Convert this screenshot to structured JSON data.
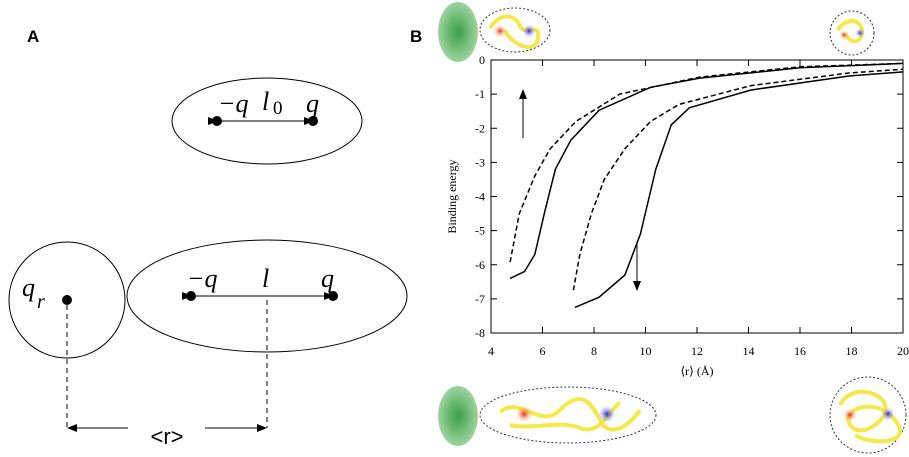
{
  "panel_a": {
    "label": "A",
    "top": {
      "left_charge": "−q",
      "length": "l",
      "length_subscript": "0",
      "right_charge": "q"
    },
    "bottom": {
      "probe_charge": "q",
      "probe_subscript": "r",
      "left_charge": "−q",
      "length": "l",
      "right_charge": "q",
      "distance": "<r>"
    }
  },
  "chart_data": {
    "type": "line",
    "panel_label": "B",
    "xlabel": "⟨r⟩ (Å)",
    "ylabel": "Binding energy",
    "xlim": [
      4,
      20
    ],
    "ylim": [
      -8,
      0
    ],
    "xticks": [
      4,
      6,
      8,
      10,
      12,
      14,
      16,
      18,
      20
    ],
    "yticks": [
      0,
      -1,
      -2,
      -3,
      -4,
      -5,
      -6,
      -7,
      -8
    ],
    "series": [
      {
        "color": "#000000",
        "dashed": true,
        "x": [
          4.74,
          5.1,
          5.7,
          6.3,
          7.3,
          9,
          12.1,
          16,
          20
        ],
        "values": [
          -5.92,
          -4.5,
          -3.4,
          -2.6,
          -1.8,
          -1.0,
          -0.5,
          -0.2,
          -0.1
        ]
      },
      {
        "color": "#000000",
        "dashed": false,
        "x": [
          4.74,
          5.3,
          5.7,
          6.1,
          6.5,
          7.1,
          8.2,
          10.2,
          12.1,
          16,
          20
        ],
        "values": [
          -6.4,
          -6.2,
          -5.7,
          -4.4,
          -3.2,
          -2.35,
          -1.47,
          -0.8,
          -0.53,
          -0.23,
          -0.1
        ]
      },
      {
        "color": "#000000",
        "dashed": true,
        "x": [
          7.2,
          7.45,
          7.9,
          8.4,
          9.2,
          10.2,
          11.3,
          14.1,
          17.9,
          20
        ],
        "values": [
          -6.75,
          -5.7,
          -4.5,
          -3.5,
          -2.6,
          -1.8,
          -1.3,
          -0.75,
          -0.38,
          -0.27
        ]
      },
      {
        "color": "#000000",
        "dashed": false,
        "x": [
          7.26,
          8.2,
          9.2,
          9.8,
          10.4,
          11,
          11.7,
          14.1,
          17.9,
          20
        ],
        "values": [
          -7.25,
          -6.95,
          -6.3,
          -5.1,
          -3.2,
          -1.9,
          -1.4,
          -0.88,
          -0.47,
          -0.35
        ]
      }
    ]
  }
}
